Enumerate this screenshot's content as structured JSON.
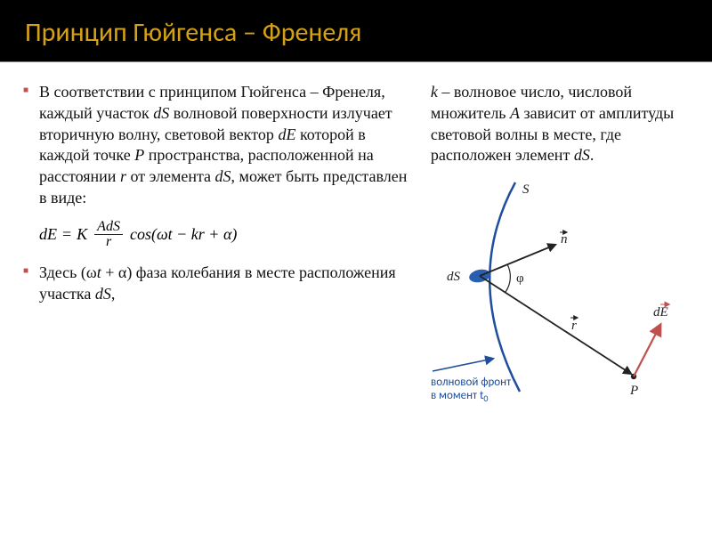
{
  "title": "Принцип Гюйгенса – Френеля",
  "colors": {
    "title_bg": "#000000",
    "title_fg": "#d4a017",
    "bullet": "#c0504d",
    "body_text": "#111111",
    "diagram_blue": "#1f4e9c",
    "diagram_red": "#c0504d"
  },
  "left": {
    "bullet1_html": "В соответствии с принципом Гюйгенса – Френеля, каждый участок <em class='var'>dS</em> волновой поверхности излучает вторичную волну, световой вектор <em class='var'>dE</em> которой в каждой точке <em class='var'>P</em> пространства, расположенной на расстоянии <em class='var'>r</em> от элемента <em class='var'>dS</em>, может быть представлен в виде:",
    "formula": {
      "lhs": "dE",
      "eq": "=",
      "K": "K",
      "frac_num": "AdS",
      "frac_den": "r",
      "cos_part": "cos(ωt − kr + α)"
    },
    "bullet2_html": "Здесь (ω<em class='var'>t</em> + α) фаза колебания в месте расположения участка <em class='var'>dS</em>,"
  },
  "right": {
    "para_html": "<em class='var'>k</em> – волновое число, числовой множитель <em class='var'>A</em> зависит от амплитуды световой волны в месте, где расположен элемент <em class='var'>dS</em>.",
    "diagram": {
      "S_label": "S",
      "dS_label": "dS",
      "n_label": "n",
      "phi_label": "φ",
      "r_label": "r",
      "P_label": "P",
      "dE_label": "dE",
      "caption_line1": "волновой фронт",
      "caption_line2": "в момент t",
      "caption_sub": "0",
      "wave_color": "#1f4e9c",
      "dE_color": "#c0504d",
      "dS_fill": "#2a5fb0"
    }
  }
}
